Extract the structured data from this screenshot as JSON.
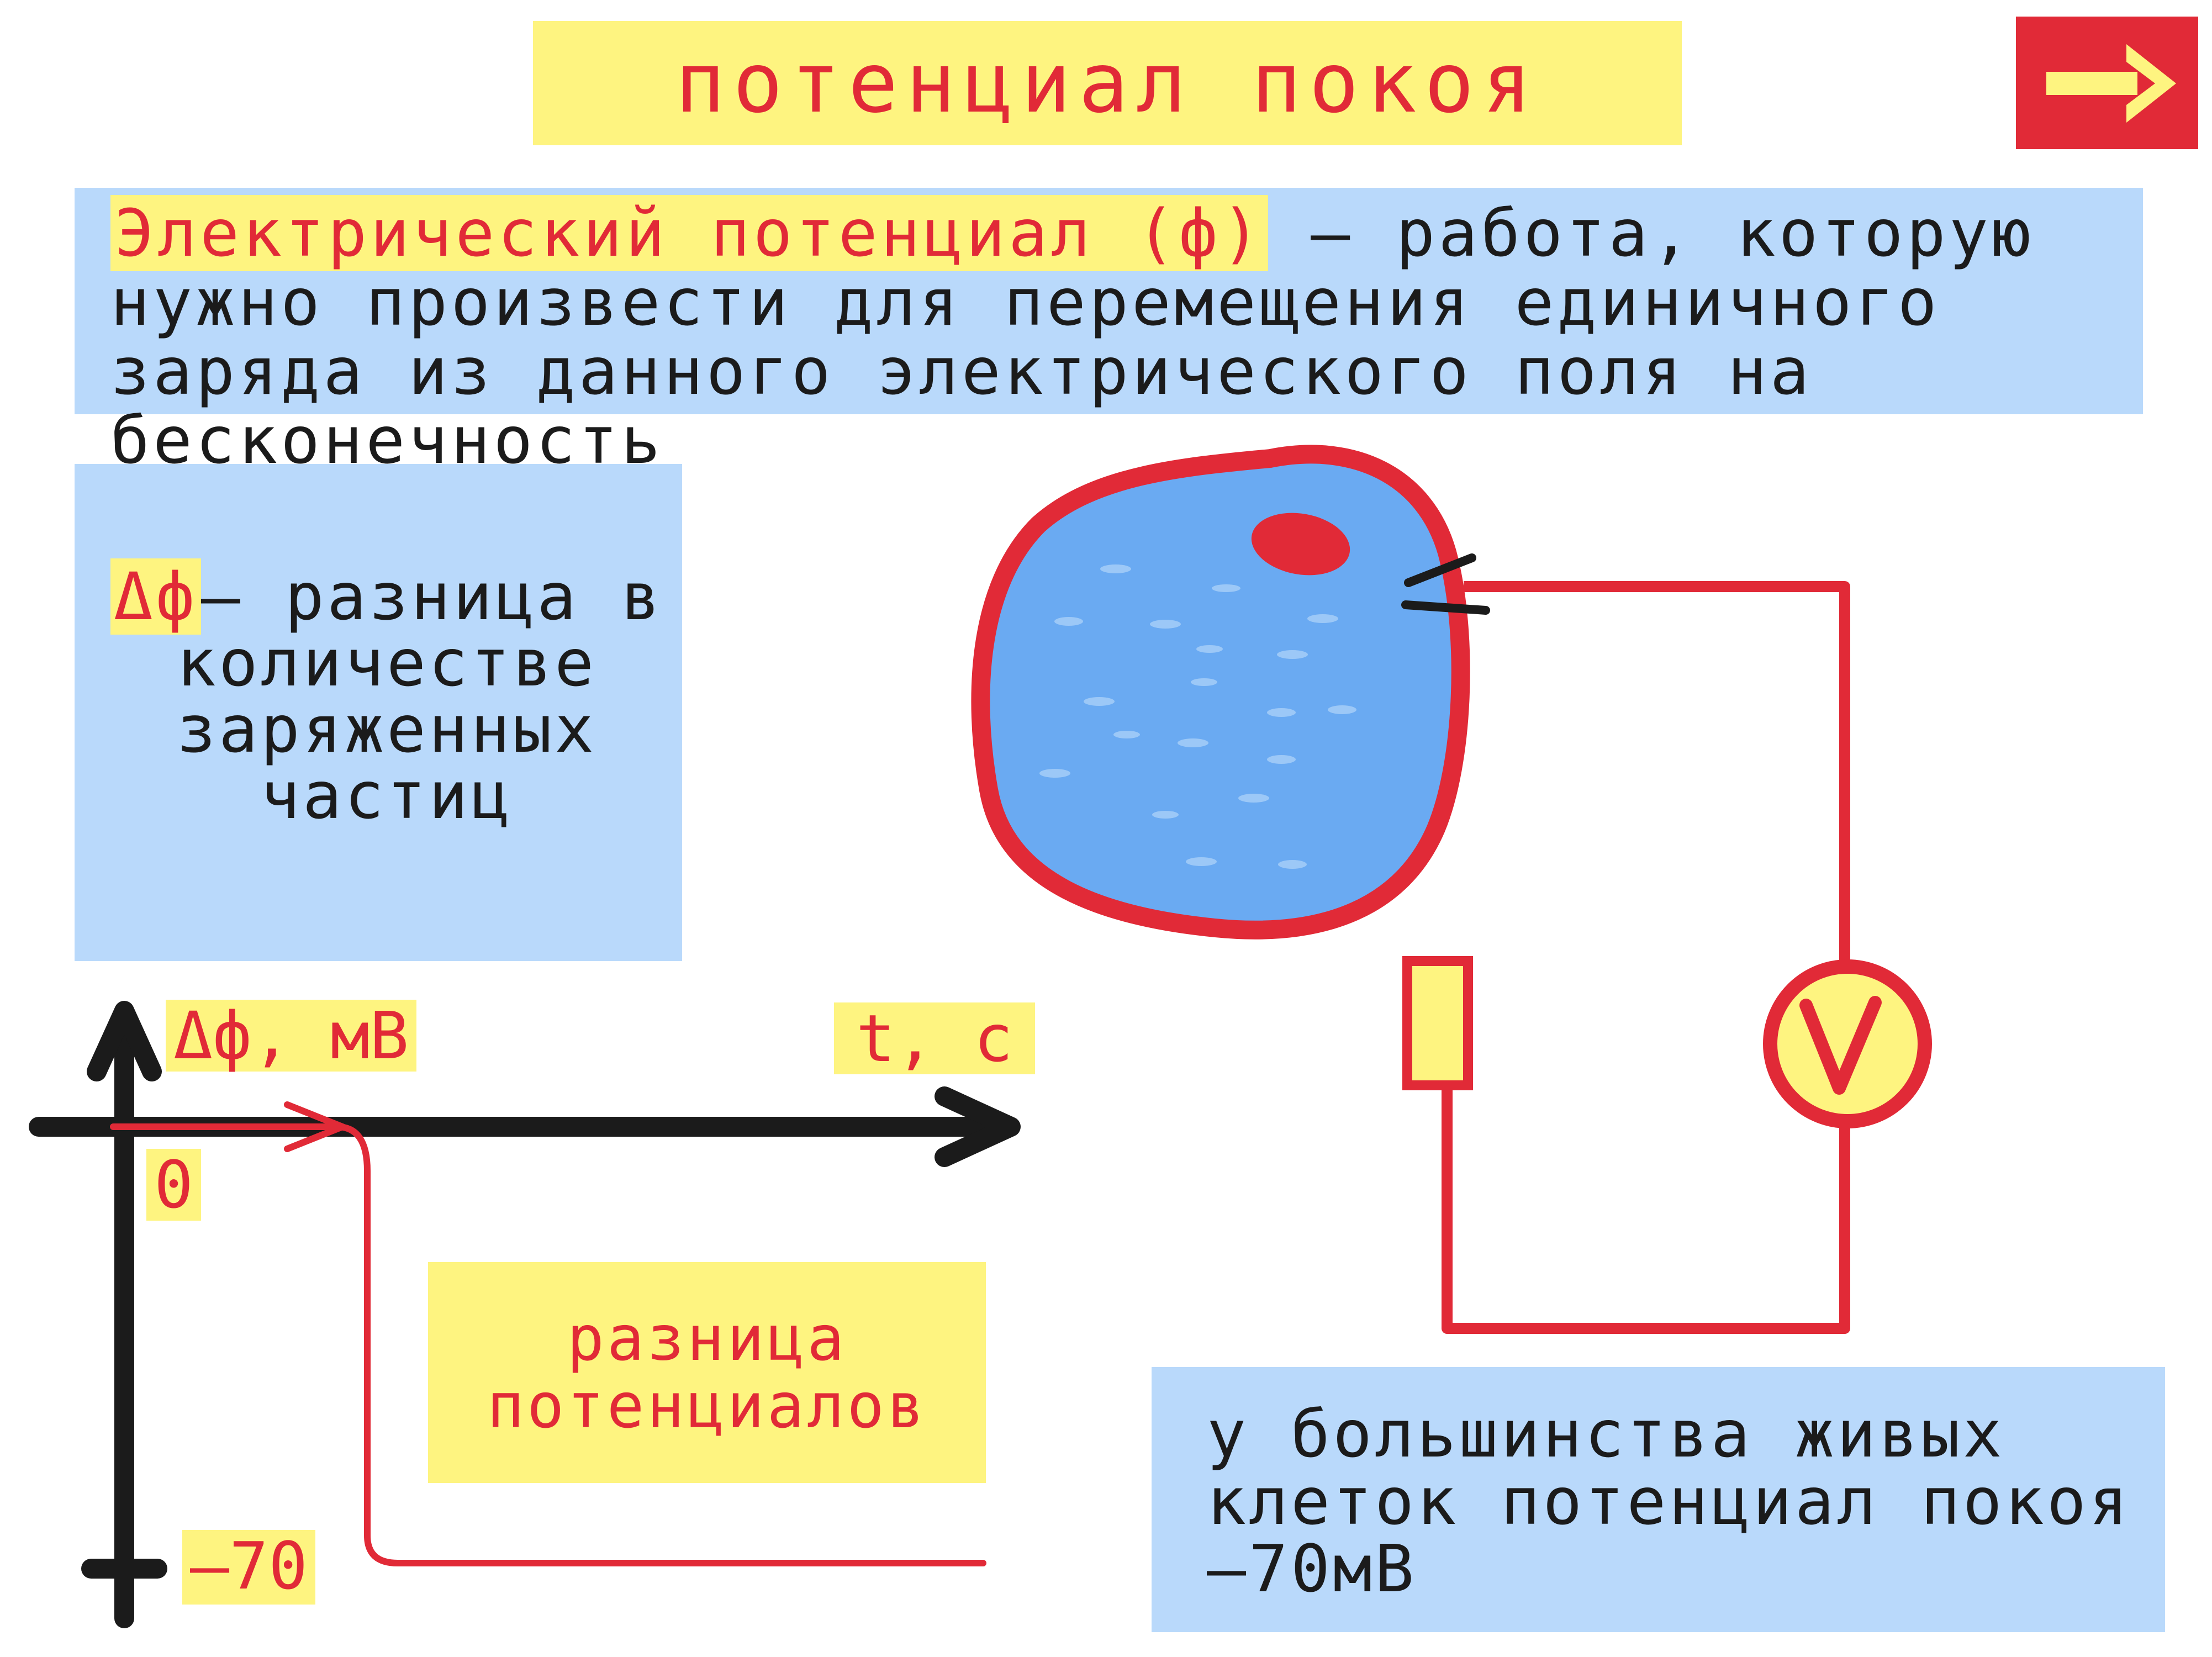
{
  "title": "потенциал покоя",
  "nav": {
    "next_icon": "arrow-right-icon",
    "color": "#e12a37",
    "arrow_color": "#fef480"
  },
  "definition": {
    "term": "Электрический потенциал (ф)",
    "text": " – работа, которую нужно произвести для перемещения единичного заряда из данного электрического поля на бесконечность"
  },
  "delta": {
    "symbol": "Δф",
    "text": "– разница в количестве заряженных частиц"
  },
  "chart": {
    "y_label": "Δф, мВ",
    "x_label": "t, с",
    "zero_label": "0",
    "min_label": "–70"
  },
  "chart_data": {
    "type": "line",
    "xlabel": "t, с",
    "ylabel": "Δф, мВ",
    "y_ticks": [
      0,
      -70
    ],
    "series": [
      {
        "points": [
          [
            0,
            0
          ],
          [
            1,
            0
          ],
          [
            1.2,
            -70
          ],
          [
            4,
            -70
          ]
        ]
      }
    ]
  },
  "potential_difference_label": "разница потенциалов",
  "fact": "у большинства живых клеток потенциал покоя –70мВ",
  "circuit": {
    "voltmeter_symbol": "V"
  },
  "colors": {
    "red": "#e12a37",
    "yellow": "#fef480",
    "light_blue": "#b9d9fb",
    "cell_blue": "#6aaaf2",
    "axis_black": "#1b1b1b"
  }
}
